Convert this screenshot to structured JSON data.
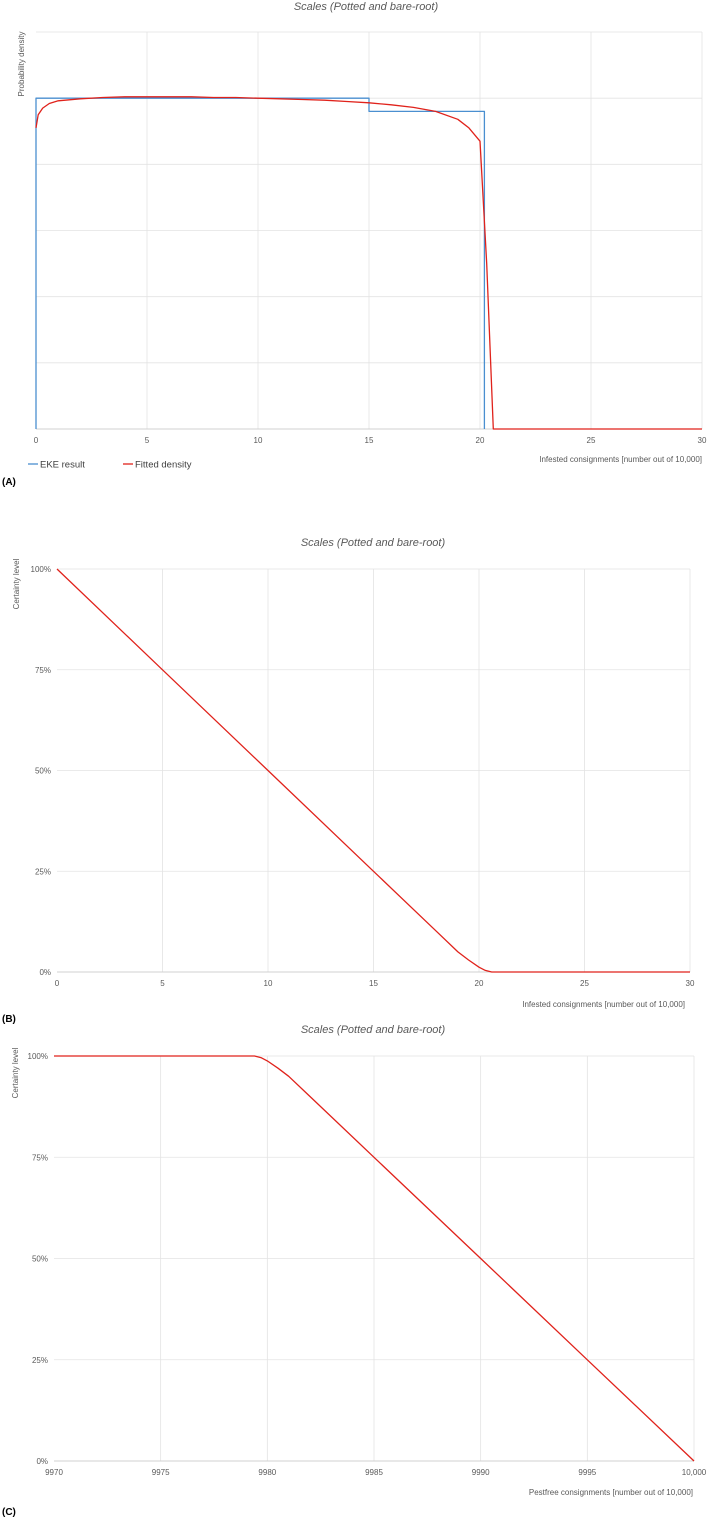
{
  "chart_data": [
    {
      "panel_label": "(A)",
      "type": "line",
      "title": "Scales (Potted and bare-root)",
      "xlabel": "Infested consignments [number out of 10,000]",
      "ylabel": "Probability density",
      "xlim": [
        0,
        30
      ],
      "ylim": [
        0,
        0.06
      ],
      "xticks": [
        "0",
        "5",
        "10",
        "15",
        "20",
        "25",
        "30"
      ],
      "x_tick_values": [
        0,
        5,
        10,
        15,
        20,
        25,
        30
      ],
      "y_gridlines": [
        0.01,
        0.02,
        0.03,
        0.04,
        0.05,
        0.06
      ],
      "show_y_tick_labels": false,
      "grid": true,
      "legend_position": "bottom-left",
      "colors": {
        "EKE result": "#4a8fd0",
        "Fitted density": "#e0221b"
      },
      "series": [
        {
          "name": "EKE result",
          "step": true,
          "x": [
            0,
            0,
            15,
            15,
            20.2,
            20.2
          ],
          "y": [
            0,
            0.05,
            0.05,
            0.048,
            0.048,
            0
          ]
        },
        {
          "name": "Fitted density",
          "x": [
            0,
            0.1,
            0.3,
            0.6,
            1,
            2,
            3,
            4,
            5,
            6,
            7,
            8,
            9,
            10,
            11,
            12,
            13,
            14,
            15,
            16,
            17,
            18,
            19,
            19.5,
            20,
            20.3,
            20.6,
            21,
            25,
            30
          ],
          "y": [
            0.0455,
            0.0475,
            0.0485,
            0.0492,
            0.0496,
            0.0499,
            0.0501,
            0.0502,
            0.0502,
            0.0502,
            0.0502,
            0.0501,
            0.0501,
            0.05,
            0.0499,
            0.0498,
            0.0497,
            0.0495,
            0.0493,
            0.049,
            0.0486,
            0.048,
            0.0468,
            0.0455,
            0.0435,
            0.025,
            0,
            0,
            0,
            0
          ]
        }
      ]
    },
    {
      "panel_label": "(B)",
      "type": "line",
      "title": "Scales (Potted and bare-root)",
      "xlabel": "Infested consignments [number out of 10,000]",
      "ylabel": "Certainty level",
      "xlim": [
        0,
        30
      ],
      "ylim": [
        0,
        100
      ],
      "xticks": [
        "0",
        "5",
        "10",
        "15",
        "20",
        "25",
        "30"
      ],
      "x_tick_values": [
        0,
        5,
        10,
        15,
        20,
        25,
        30
      ],
      "yticks": [
        "0%",
        "25%",
        "50%",
        "75%",
        "100%"
      ],
      "y_tick_values": [
        0,
        25,
        50,
        75,
        100
      ],
      "grid": true,
      "colors": {
        "line": "#e0221b"
      },
      "series": [
        {
          "x": [
            0,
            5,
            10,
            15,
            18,
            19,
            19.5,
            20,
            20.3,
            20.6,
            21,
            25,
            30
          ],
          "y": [
            100,
            75,
            50,
            25,
            10,
            5,
            3,
            1.2,
            0.4,
            0,
            0,
            0,
            0
          ]
        }
      ]
    },
    {
      "panel_label": "(C)",
      "type": "line",
      "title": "Scales (Potted and bare-root)",
      "xlabel": "Pestfree consignments [number out of 10,000]",
      "ylabel": "Certainty level",
      "xlim": [
        9970,
        10000
      ],
      "ylim": [
        0,
        100
      ],
      "xticks": [
        "9970",
        "9975",
        "9980",
        "9985",
        "9990",
        "9995",
        "10,000"
      ],
      "x_tick_values": [
        9970,
        9975,
        9980,
        9985,
        9990,
        9995,
        10000
      ],
      "yticks": [
        "0%",
        "25%",
        "50%",
        "75%",
        "100%"
      ],
      "y_tick_values": [
        0,
        25,
        50,
        75,
        100
      ],
      "grid": true,
      "colors": {
        "line": "#e0221b"
      },
      "series": [
        {
          "x": [
            9970,
            9975,
            9979,
            9979.4,
            9979.7,
            9980,
            9980.5,
            9981,
            9982,
            9985,
            9990,
            9995,
            10000
          ],
          "y": [
            100,
            100,
            100,
            100,
            99.6,
            98.8,
            97,
            95,
            90,
            75,
            50,
            25,
            0
          ]
        }
      ]
    }
  ]
}
